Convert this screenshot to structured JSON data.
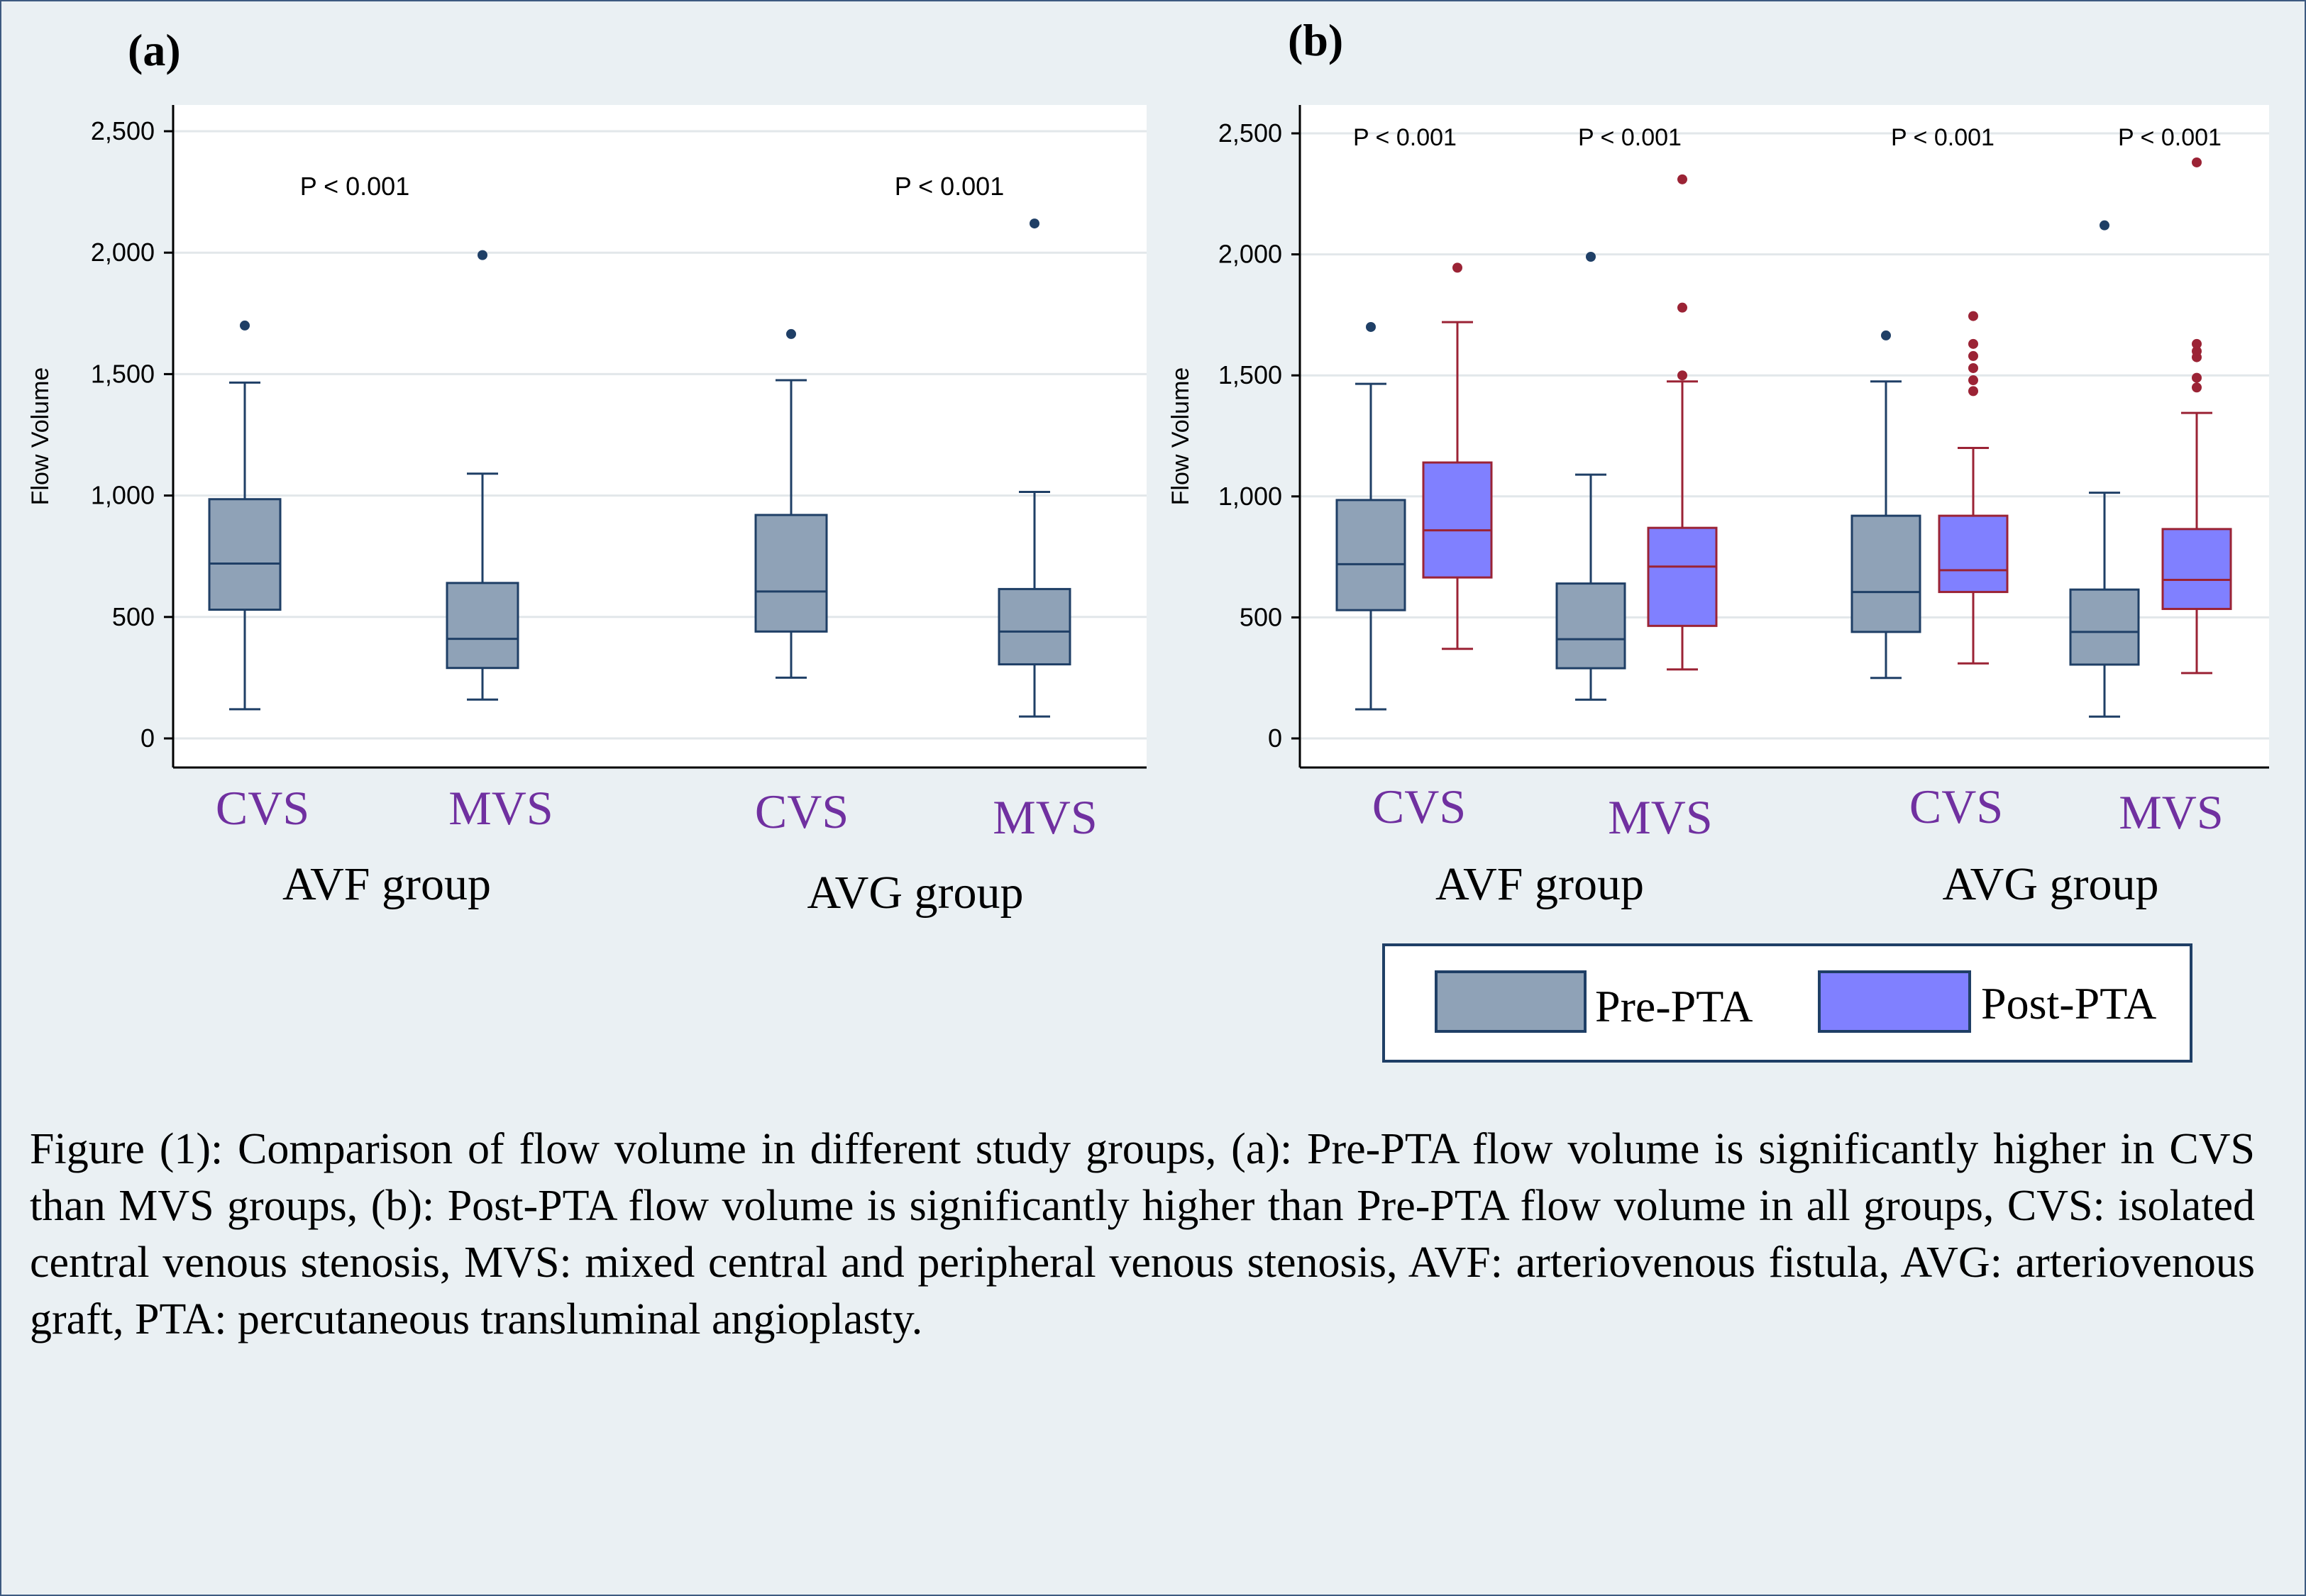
{
  "caption": "Figure (1): Comparison of flow volume in different study groups, (a): Pre-PTA flow volume is significantly higher in CVS than MVS groups, (b): Post-PTA flow volume is significantly higher than Pre-PTA flow volume in all groups, CVS: isolated central venous stenosis, MVS: mixed central and peripheral venous stenosis, AVF: arteriovenous fistula, AVG: arteriovenous graft, PTA: percutaneous transluminal angioplasty.",
  "colors": {
    "pre_fill": "#8fa2b7",
    "pre_stroke": "#1f3f66",
    "post_fill": "#8080ff",
    "post_stroke": "#9b2335",
    "category": "#7030a0",
    "grid": "#e2e7ea",
    "plot_bg": "#ffffff",
    "page_bg": "#eaf0f3"
  },
  "legend": {
    "items": [
      {
        "name": "Pre-PTA",
        "color": "#8fa2b7"
      },
      {
        "name": "Post-PTA",
        "color": "#8080ff"
      }
    ],
    "placement": "bottom-right, below panel (b)"
  },
  "chart_data": [
    {
      "type": "box",
      "panel_label": "(a)",
      "ylabel": "Flow Volume",
      "ylim": [
        0,
        2500
      ],
      "yticks": [
        0,
        500,
        1000,
        1500,
        2000,
        2500
      ],
      "ytick_labels": [
        "0",
        "500",
        "1,000",
        "1,500",
        "2,000",
        "2,500"
      ],
      "grid": true,
      "categories": [
        "CVS",
        "MVS",
        "CVS",
        "MVS"
      ],
      "groups": [
        "AVF group",
        "AVG group"
      ],
      "annotations": [
        "P < 0.001",
        "P < 0.001"
      ],
      "series": [
        {
          "name": "Pre-PTA",
          "boxes": [
            {
              "category": "CVS",
              "group": "AVF group",
              "whisker_low": 120,
              "q1": 530,
              "median": 720,
              "q3": 985,
              "whisker_high": 1465,
              "outliers": [
                1700
              ]
            },
            {
              "category": "MVS",
              "group": "AVF group",
              "whisker_low": 160,
              "q1": 290,
              "median": 410,
              "q3": 640,
              "whisker_high": 1090,
              "outliers": [
                1990
              ]
            },
            {
              "category": "CVS",
              "group": "AVG group",
              "whisker_low": 250,
              "q1": 440,
              "median": 605,
              "q3": 920,
              "whisker_high": 1475,
              "outliers": [
                1665
              ]
            },
            {
              "category": "MVS",
              "group": "AVG group",
              "whisker_low": 90,
              "q1": 305,
              "median": 440,
              "q3": 615,
              "whisker_high": 1015,
              "outliers": [
                2120
              ]
            }
          ]
        }
      ]
    },
    {
      "type": "box",
      "panel_label": "(b)",
      "ylabel": "Flow Volume",
      "ylim": [
        0,
        2500
      ],
      "yticks": [
        0,
        500,
        1000,
        1500,
        2000,
        2500
      ],
      "ytick_labels": [
        "0",
        "500",
        "1,000",
        "1,500",
        "2,000",
        "2,500"
      ],
      "grid": true,
      "categories": [
        "CVS",
        "MVS",
        "CVS",
        "MVS"
      ],
      "groups": [
        "AVF group",
        "AVG group"
      ],
      "annotations": [
        "P < 0.001",
        "P < 0.001",
        "P < 0.001",
        "P < 0.001"
      ],
      "series": [
        {
          "name": "Pre-PTA",
          "boxes": [
            {
              "category": "CVS",
              "group": "AVF group",
              "whisker_low": 120,
              "q1": 530,
              "median": 720,
              "q3": 985,
              "whisker_high": 1465,
              "outliers": [
                1700
              ]
            },
            {
              "category": "MVS",
              "group": "AVF group",
              "whisker_low": 160,
              "q1": 290,
              "median": 410,
              "q3": 640,
              "whisker_high": 1090,
              "outliers": [
                1990
              ]
            },
            {
              "category": "CVS",
              "group": "AVG group",
              "whisker_low": 250,
              "q1": 440,
              "median": 605,
              "q3": 920,
              "whisker_high": 1475,
              "outliers": [
                1665
              ]
            },
            {
              "category": "MVS",
              "group": "AVG group",
              "whisker_low": 90,
              "q1": 305,
              "median": 440,
              "q3": 615,
              "whisker_high": 1015,
              "outliers": [
                2120
              ]
            }
          ]
        },
        {
          "name": "Post-PTA",
          "boxes": [
            {
              "category": "CVS",
              "group": "AVF group",
              "whisker_low": 370,
              "q1": 665,
              "median": 860,
              "q3": 1140,
              "whisker_high": 1720,
              "outliers": [
                1945
              ]
            },
            {
              "category": "MVS",
              "group": "AVF group",
              "whisker_low": 285,
              "q1": 465,
              "median": 710,
              "q3": 870,
              "whisker_high": 1475,
              "outliers": [
                1500,
                1780,
                2310
              ]
            },
            {
              "category": "CVS",
              "group": "AVG group",
              "whisker_low": 310,
              "q1": 605,
              "median": 695,
              "q3": 920,
              "whisker_high": 1200,
              "outliers": [
                1435,
                1480,
                1530,
                1580,
                1630,
                1745
              ]
            },
            {
              "category": "MVS",
              "group": "AVG group",
              "whisker_low": 270,
              "q1": 535,
              "median": 655,
              "q3": 865,
              "whisker_high": 1345,
              "outliers": [
                1450,
                1490,
                1575,
                1600,
                1630,
                2380
              ]
            }
          ]
        }
      ]
    }
  ]
}
